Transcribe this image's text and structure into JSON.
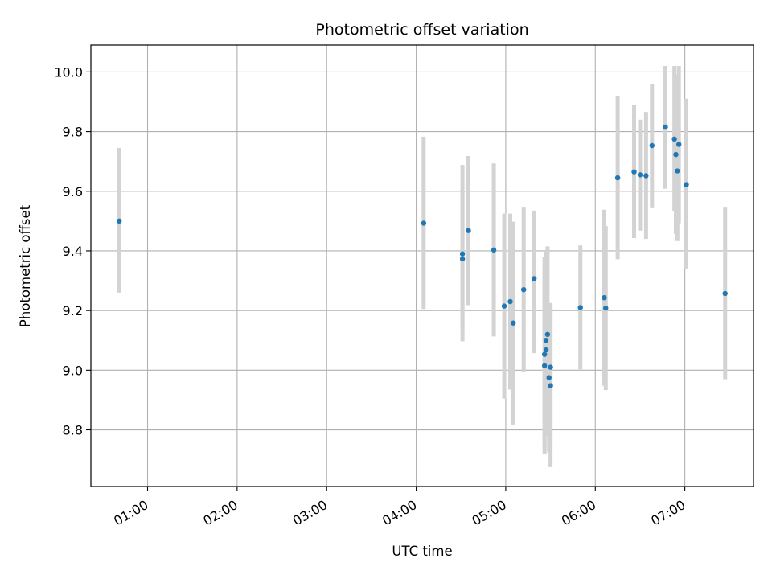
{
  "chart_data": {
    "type": "scatter",
    "title": "Photometric offset variation",
    "xlabel": "UTC time",
    "ylabel": "Photometric offset",
    "x_unit": "UTC time (HH:MM)",
    "xlim": [
      "00:22",
      "07:46"
    ],
    "ylim": [
      8.61,
      10.09
    ],
    "grid": true,
    "x_ticks": [
      "01:00",
      "02:00",
      "03:00",
      "04:00",
      "05:00",
      "06:00",
      "07:00"
    ],
    "y_ticks": [
      "8.8",
      "9.0",
      "9.2",
      "9.4",
      "9.6",
      "9.8",
      "10.0"
    ],
    "y_tick_values": [
      8.8,
      9.0,
      9.2,
      9.4,
      9.6,
      9.8,
      10.0
    ],
    "point_color": "#1f77b4",
    "errorbar_color": "#d3d3d3",
    "points": [
      {
        "x": "00:41",
        "y": 9.5,
        "ylow": 9.26,
        "yhigh": 9.745
      },
      {
        "x": "04:05",
        "y": 9.493,
        "ylow": 9.205,
        "yhigh": 9.783
      },
      {
        "x": "04:31",
        "y": 9.39,
        "ylow": 9.097,
        "yhigh": 9.688
      },
      {
        "x": "04:31",
        "y": 9.373,
        "ylow": 9.15,
        "yhigh": 9.6
      },
      {
        "x": "04:35",
        "y": 9.468,
        "ylow": 9.218,
        "yhigh": 9.718
      },
      {
        "x": "04:52",
        "y": 9.403,
        "ylow": 9.113,
        "yhigh": 9.693
      },
      {
        "x": "04:59",
        "y": 9.215,
        "ylow": 8.905,
        "yhigh": 9.525
      },
      {
        "x": "05:03",
        "y": 9.23,
        "ylow": 8.935,
        "yhigh": 9.525
      },
      {
        "x": "05:05",
        "y": 9.158,
        "ylow": 8.818,
        "yhigh": 9.498
      },
      {
        "x": "05:12",
        "y": 9.27,
        "ylow": 8.995,
        "yhigh": 9.545
      },
      {
        "x": "05:19",
        "y": 9.307,
        "ylow": 9.057,
        "yhigh": 9.535
      },
      {
        "x": "05:26",
        "y": 9.015,
        "ylow": 8.718,
        "yhigh": 9.35
      },
      {
        "x": "05:26",
        "y": 9.053,
        "ylow": 8.75,
        "yhigh": 9.38
      },
      {
        "x": "05:27",
        "y": 9.1,
        "ylow": 8.8,
        "yhigh": 9.4
      },
      {
        "x": "05:27",
        "y": 9.068,
        "ylow": 8.78,
        "yhigh": 9.35
      },
      {
        "x": "05:28",
        "y": 9.12,
        "ylow": 8.82,
        "yhigh": 9.415
      },
      {
        "x": "05:29",
        "y": 8.975,
        "ylow": 8.725,
        "yhigh": 9.225
      },
      {
        "x": "05:30",
        "y": 8.948,
        "ylow": 8.675,
        "yhigh": 9.225
      },
      {
        "x": "05:30",
        "y": 9.01,
        "ylow": 8.76,
        "yhigh": 9.225
      },
      {
        "x": "05:50",
        "y": 9.21,
        "ylow": 9.003,
        "yhigh": 9.418
      },
      {
        "x": "06:06",
        "y": 9.243,
        "ylow": 8.948,
        "yhigh": 9.538
      },
      {
        "x": "06:07",
        "y": 9.208,
        "ylow": 8.933,
        "yhigh": 9.483
      },
      {
        "x": "06:15",
        "y": 9.645,
        "ylow": 9.372,
        "yhigh": 9.918
      },
      {
        "x": "06:26",
        "y": 9.665,
        "ylow": 9.443,
        "yhigh": 9.888
      },
      {
        "x": "06:30",
        "y": 9.655,
        "ylow": 9.468,
        "yhigh": 9.84
      },
      {
        "x": "06:34",
        "y": 9.652,
        "ylow": 9.44,
        "yhigh": 9.866
      },
      {
        "x": "06:38",
        "y": 9.753,
        "ylow": 9.543,
        "yhigh": 9.96
      },
      {
        "x": "06:47",
        "y": 9.815,
        "ylow": 9.608,
        "yhigh": 10.02
      },
      {
        "x": "06:53",
        "y": 9.775,
        "ylow": 9.533,
        "yhigh": 10.02
      },
      {
        "x": "06:54",
        "y": 9.723,
        "ylow": 9.457,
        "yhigh": 9.99
      },
      {
        "x": "06:55",
        "y": 9.668,
        "ylow": 9.433,
        "yhigh": 9.905
      },
      {
        "x": "06:56",
        "y": 9.757,
        "ylow": 9.493,
        "yhigh": 10.02
      },
      {
        "x": "07:01",
        "y": 9.622,
        "ylow": 9.338,
        "yhigh": 9.91
      },
      {
        "x": "07:27",
        "y": 9.257,
        "ylow": 8.97,
        "yhigh": 9.545
      }
    ]
  }
}
